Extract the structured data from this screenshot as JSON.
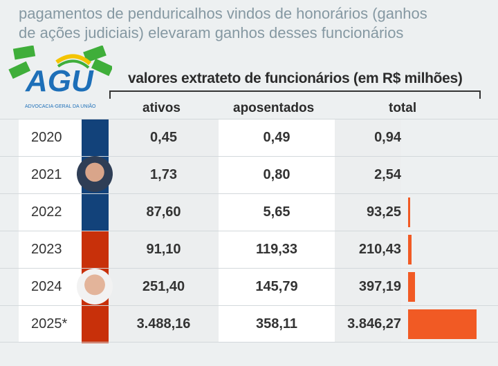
{
  "subtitle_lines": [
    "pagamentos de penduricalhos vindos de honorários (ganhos",
    "de ações judiciais) elevaram ganhos desses funcionários"
  ],
  "logo": {
    "text": "AGU",
    "caption": "ADVOCACIA-GERAL DA UNIÃO"
  },
  "colors": {
    "bolsonaro": "#12427a",
    "lula": "#c8300a",
    "bar": "#f15a24"
  },
  "chart_data": {
    "type": "table",
    "title": "valores extrateto de funcionários (em R$ milhões)",
    "columns": [
      "ativos",
      "aposentados",
      "total"
    ],
    "rows": [
      {
        "year": "2020",
        "ativos": "0,45",
        "aposentados": "0,49",
        "total": "0,94",
        "total_value": 0.94,
        "government": "bolsonaro"
      },
      {
        "year": "2021",
        "ativos": "1,73",
        "aposentados": "0,80",
        "total": "2,54",
        "total_value": 2.54,
        "government": "bolsonaro"
      },
      {
        "year": "2022",
        "ativos": "87,60",
        "aposentados": "5,65",
        "total": "93,25",
        "total_value": 93.25,
        "government": "bolsonaro"
      },
      {
        "year": "2023",
        "ativos": "91,10",
        "aposentados": "119,33",
        "total": "210,43",
        "total_value": 210.43,
        "government": "lula"
      },
      {
        "year": "2024",
        "ativos": "251,40",
        "aposentados": "145,79",
        "total": "397,19",
        "total_value": 397.19,
        "government": "lula"
      },
      {
        "year": "2025*",
        "ativos": "3.488,16",
        "aposentados": "358,11",
        "total": "3.846,27",
        "total_value": 3846.27,
        "government": "lula"
      }
    ],
    "bar_max": 3846.27
  }
}
